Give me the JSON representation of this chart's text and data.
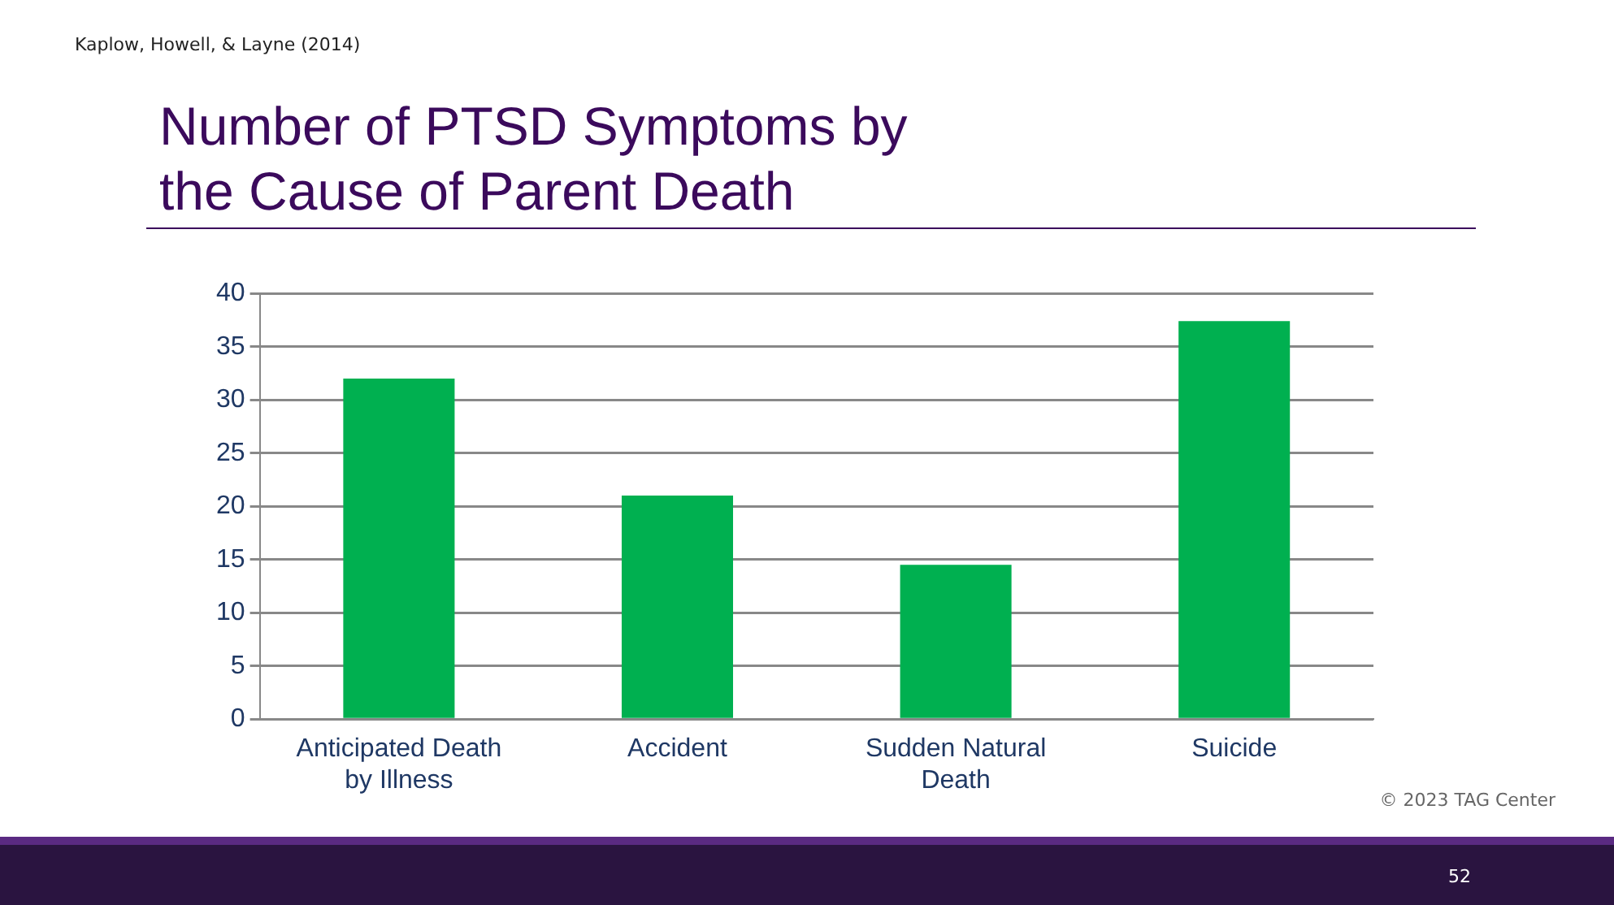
{
  "chart_data": {
    "type": "bar",
    "title": "Number of PTSD Symptoms by the Cause of Parent Death",
    "categories": [
      "Anticipated Death by Illness",
      "Accident",
      "Sudden Natural Death",
      "Suicide"
    ],
    "values": [
      32,
      21,
      14.5,
      37.4
    ],
    "color": "#00b050",
    "ylim": [
      0,
      40
    ],
    "yticks": [
      0,
      5,
      10,
      15,
      20,
      25,
      30,
      35,
      40
    ],
    "grid": "y",
    "legend": false,
    "annotations": [
      "Kaplow, Howell, & Layne (2014)",
      "© 2023 TAG Center",
      "52"
    ]
  }
}
